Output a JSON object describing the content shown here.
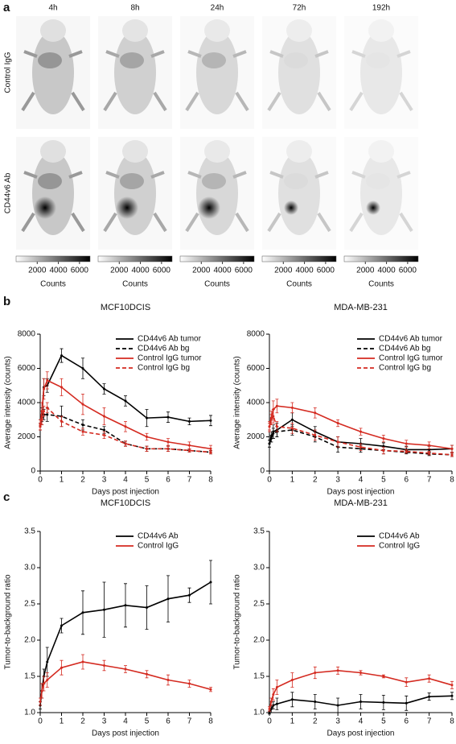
{
  "figure": {
    "panel_labels": [
      "a",
      "b",
      "c"
    ],
    "time_points": [
      "4h",
      "8h",
      "24h",
      "72h",
      "192h"
    ],
    "row_labels": [
      "Control IgG",
      "CD44v6 Ab"
    ],
    "colorbar": {
      "lim": [
        0,
        7000
      ],
      "ticks": [
        2000,
        4000,
        6000
      ],
      "label": "Counts"
    }
  },
  "chart_data": [
    {
      "type": "line",
      "title": "MCF10DCIS",
      "xlabel": "Days post injection",
      "ylabel": "Average intensity (counts)",
      "legend": "upper right",
      "x": [
        0,
        0.08,
        0.17,
        0.33,
        1,
        2,
        3,
        4,
        5,
        6,
        7,
        8
      ],
      "xlim": [
        0,
        8
      ],
      "xticks": [
        0,
        1,
        2,
        3,
        4,
        5,
        6,
        7,
        8
      ],
      "ylim": [
        0,
        8000
      ],
      "yticks": [
        0,
        2000,
        4000,
        6000,
        8000
      ],
      "series": [
        {
          "name": "CD44v6 Ab tumor",
          "color": "#000000",
          "dashed": false,
          "values": [
            2700,
            3300,
            4900,
            5000,
            6750,
            6000,
            4800,
            4100,
            3100,
            3150,
            2900,
            2950
          ],
          "errors": [
            300,
            400,
            500,
            400,
            400,
            600,
            300,
            300,
            500,
            300,
            200,
            300
          ]
        },
        {
          "name": "CD44v6 Ab bg",
          "color": "#000000",
          "dashed": true,
          "values": [
            2600,
            3000,
            3300,
            3300,
            3200,
            2700,
            2400,
            1600,
            1300,
            1300,
            1200,
            1100
          ],
          "errors": [
            200,
            300,
            300,
            400,
            600,
            300,
            200,
            150,
            150,
            150,
            100,
            100
          ]
        },
        {
          "name": "Control IgG tumor",
          "color": "#d42a20",
          "dashed": false,
          "values": [
            2700,
            3500,
            4800,
            5300,
            4900,
            3900,
            3200,
            2600,
            2000,
            1700,
            1500,
            1300
          ],
          "errors": [
            300,
            500,
            600,
            500,
            500,
            600,
            500,
            300,
            200,
            200,
            200,
            200
          ]
        },
        {
          "name": "Control IgG bg",
          "color": "#d42a20",
          "dashed": true,
          "values": [
            2600,
            3000,
            3500,
            3700,
            2900,
            2300,
            2100,
            1600,
            1300,
            1300,
            1200,
            1100
          ],
          "errors": [
            200,
            300,
            300,
            300,
            300,
            200,
            200,
            150,
            150,
            150,
            100,
            100
          ]
        }
      ]
    },
    {
      "type": "line",
      "title": "MDA-MB-231",
      "xlabel": "Days post injection",
      "ylabel": "Average intensity (counts)",
      "legend": "upper right",
      "x": [
        0,
        0.08,
        0.17,
        0.33,
        1,
        2,
        3,
        4,
        5,
        6,
        7,
        8
      ],
      "xlim": [
        0,
        8
      ],
      "xticks": [
        0,
        1,
        2,
        3,
        4,
        5,
        6,
        7,
        8
      ],
      "ylim": [
        0,
        8000
      ],
      "yticks": [
        0,
        2000,
        4000,
        6000,
        8000
      ],
      "series": [
        {
          "name": "CD44v6 Ab tumor",
          "color": "#000000",
          "dashed": false,
          "values": [
            1600,
            2000,
            2300,
            2400,
            3000,
            2300,
            1700,
            1600,
            1450,
            1250,
            1250,
            1300
          ],
          "errors": [
            200,
            300,
            400,
            400,
            400,
            300,
            300,
            300,
            200,
            200,
            200,
            200
          ]
        },
        {
          "name": "CD44v6 Ab bg",
          "color": "#000000",
          "dashed": true,
          "values": [
            1600,
            1900,
            2200,
            2300,
            2400,
            2000,
            1400,
            1300,
            1200,
            1100,
            1000,
            950
          ],
          "errors": [
            200,
            200,
            300,
            300,
            300,
            300,
            300,
            200,
            200,
            100,
            100,
            100
          ]
        },
        {
          "name": "Control IgG tumor",
          "color": "#d42a20",
          "dashed": false,
          "values": [
            2600,
            3100,
            3600,
            3800,
            3700,
            3400,
            2800,
            2300,
            1900,
            1600,
            1500,
            1300
          ],
          "errors": [
            300,
            400,
            500,
            400,
            300,
            300,
            200,
            200,
            200,
            200,
            200,
            200
          ]
        },
        {
          "name": "Control IgG bg",
          "color": "#d42a20",
          "dashed": true,
          "values": [
            2600,
            3000,
            3200,
            2600,
            2500,
            2100,
            1700,
            1400,
            1200,
            1150,
            1050,
            950
          ],
          "errors": [
            200,
            300,
            400,
            300,
            300,
            300,
            300,
            200,
            200,
            100,
            100,
            100
          ]
        }
      ]
    },
    {
      "type": "line",
      "title": "MCF10DCIS",
      "xlabel": "Days post injection",
      "ylabel": "Tumor-to-background ratio",
      "legend": "upper right",
      "x": [
        0,
        0.08,
        0.17,
        0.33,
        1,
        2,
        3,
        4,
        5,
        6,
        7,
        8
      ],
      "xlim": [
        0,
        8
      ],
      "xticks": [
        0,
        1,
        2,
        3,
        4,
        5,
        6,
        7,
        8
      ],
      "ylim": [
        1,
        3.5
      ],
      "yticks": [
        {
          "value": 1,
          "label": "1.0"
        },
        1.5,
        {
          "value": 2,
          "label": "2.0"
        },
        2.5,
        {
          "value": 3,
          "label": "3.0"
        },
        3.5
      ],
      "series": [
        {
          "name": "CD44v6 Ab",
          "color": "#000000",
          "dashed": false,
          "values": [
            1.1,
            1.3,
            1.5,
            1.7,
            2.2,
            2.38,
            2.42,
            2.48,
            2.45,
            2.57,
            2.62,
            2.8
          ],
          "errors": [
            0.05,
            0.1,
            0.1,
            0.2,
            0.1,
            0.3,
            0.38,
            0.3,
            0.3,
            0.32,
            0.1,
            0.3
          ]
        },
        {
          "name": "Control IgG",
          "color": "#d42a20",
          "dashed": false,
          "values": [
            1.15,
            1.3,
            1.4,
            1.45,
            1.62,
            1.7,
            1.65,
            1.6,
            1.53,
            1.45,
            1.4,
            1.32
          ],
          "errors": [
            0.05,
            0.1,
            0.1,
            0.1,
            0.1,
            0.1,
            0.07,
            0.05,
            0.05,
            0.07,
            0.05,
            0.03
          ]
        }
      ]
    },
    {
      "type": "line",
      "title": "MDA-MB-231",
      "xlabel": "Days post injection",
      "ylabel": "Tumor-to-background ratio",
      "legend": "upper right",
      "x": [
        0,
        0.08,
        0.17,
        0.33,
        1,
        2,
        3,
        4,
        5,
        6,
        7,
        8
      ],
      "xlim": [
        0,
        8
      ],
      "xticks": [
        0,
        1,
        2,
        3,
        4,
        5,
        6,
        7,
        8
      ],
      "ylim": [
        1,
        3.5
      ],
      "yticks": [
        {
          "value": 1,
          "label": "1.0"
        },
        1.5,
        {
          "value": 2,
          "label": "2.0"
        },
        2.5,
        {
          "value": 3,
          "label": "3.0"
        },
        3.5
      ],
      "series": [
        {
          "name": "CD44v6 Ab",
          "color": "#000000",
          "dashed": false,
          "values": [
            1.0,
            1.05,
            1.1,
            1.12,
            1.18,
            1.15,
            1.1,
            1.15,
            1.14,
            1.13,
            1.22,
            1.23
          ],
          "errors": [
            0.02,
            0.05,
            0.05,
            0.08,
            0.1,
            0.1,
            0.1,
            0.1,
            0.1,
            0.1,
            0.05,
            0.05
          ]
        },
        {
          "name": "Control IgG",
          "color": "#d42a20",
          "dashed": false,
          "values": [
            1.05,
            1.15,
            1.25,
            1.35,
            1.45,
            1.55,
            1.58,
            1.55,
            1.5,
            1.42,
            1.47,
            1.38
          ],
          "errors": [
            0.03,
            0.05,
            0.08,
            0.1,
            0.1,
            0.08,
            0.05,
            0.03,
            0.02,
            0.06,
            0.05,
            0.05
          ]
        }
      ]
    }
  ]
}
